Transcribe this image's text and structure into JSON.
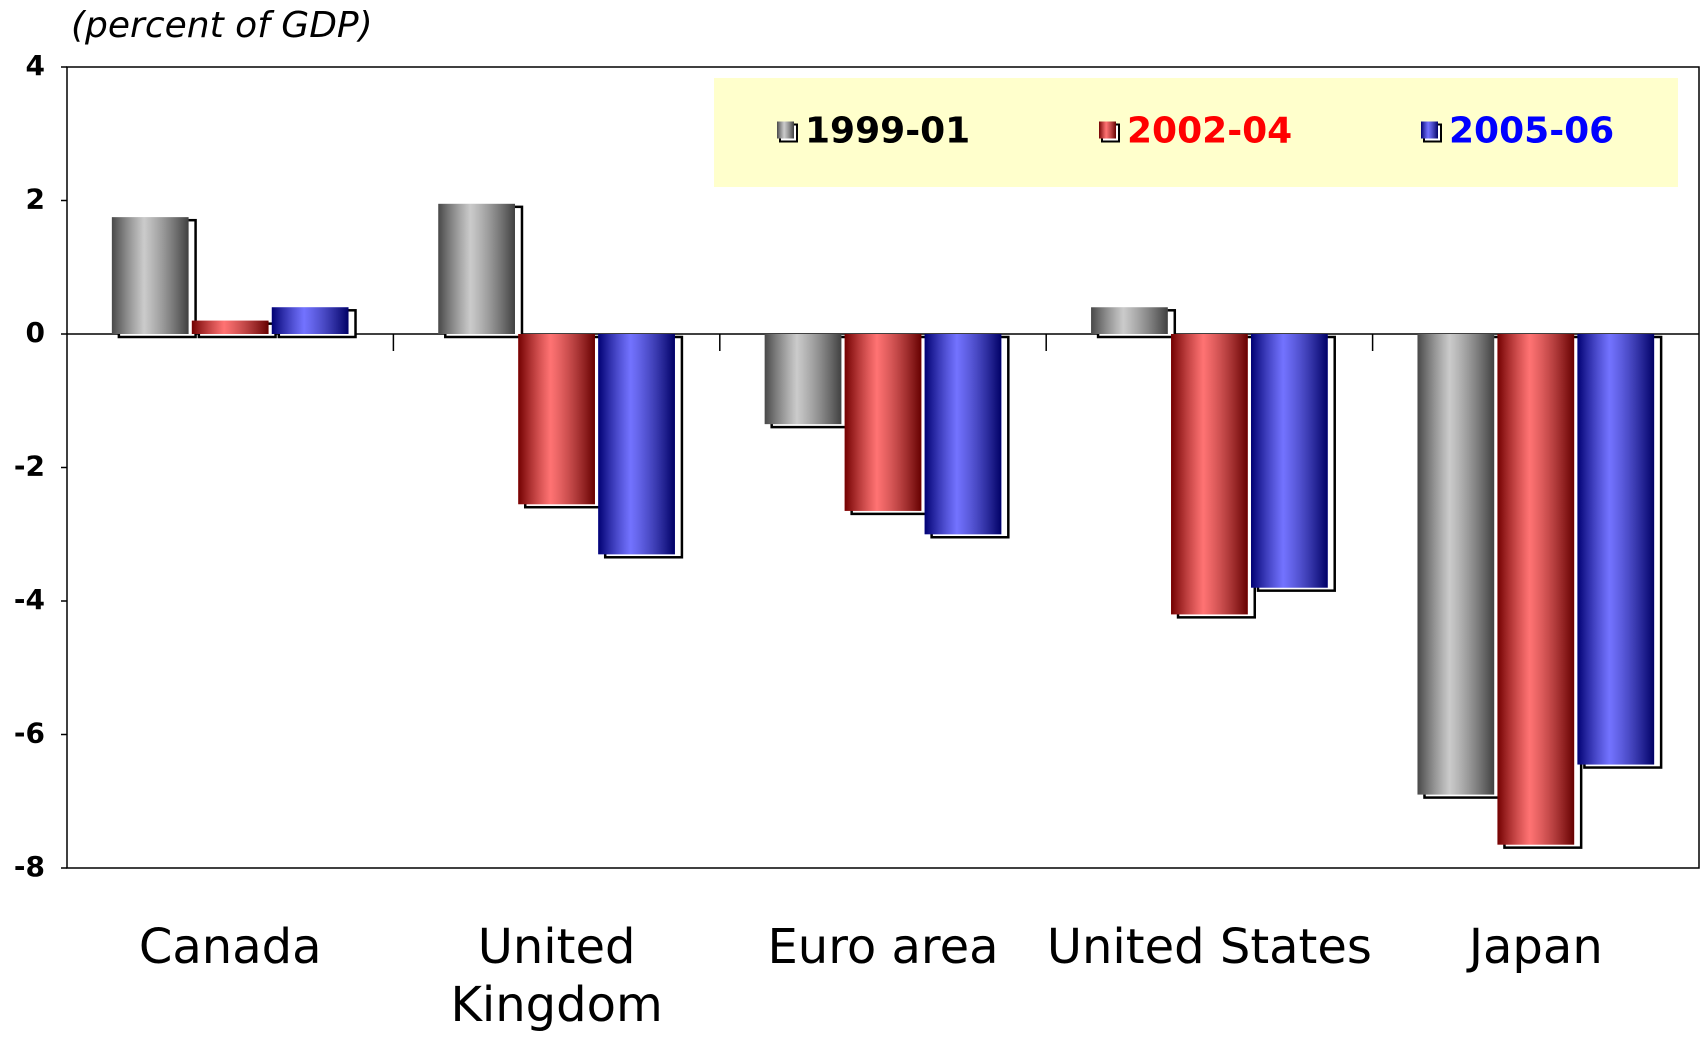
{
  "chart_data": {
    "type": "bar",
    "subtitle": "(percent of GDP)",
    "categories": [
      "Canada",
      "United\nKingdom",
      "Euro area",
      "United States",
      "Japan"
    ],
    "series": [
      {
        "name": "1999-01",
        "color": "#a0a0a0",
        "values": [
          1.75,
          1.95,
          -1.35,
          0.4,
          -6.9
        ]
      },
      {
        "name": "2002-04",
        "color": "#ff0000",
        "values": [
          0.2,
          -2.55,
          -2.65,
          -4.2,
          -7.65
        ]
      },
      {
        "name": "2005-06",
        "color": "#0000ff",
        "values": [
          0.4,
          -3.3,
          -3.0,
          -3.8,
          -6.45
        ]
      }
    ],
    "ylim": [
      -8,
      4
    ],
    "yticks": [
      4,
      2,
      0,
      -2,
      -4,
      -6,
      -8
    ],
    "legend": "top-right",
    "legend_background": "#ffffcc"
  }
}
